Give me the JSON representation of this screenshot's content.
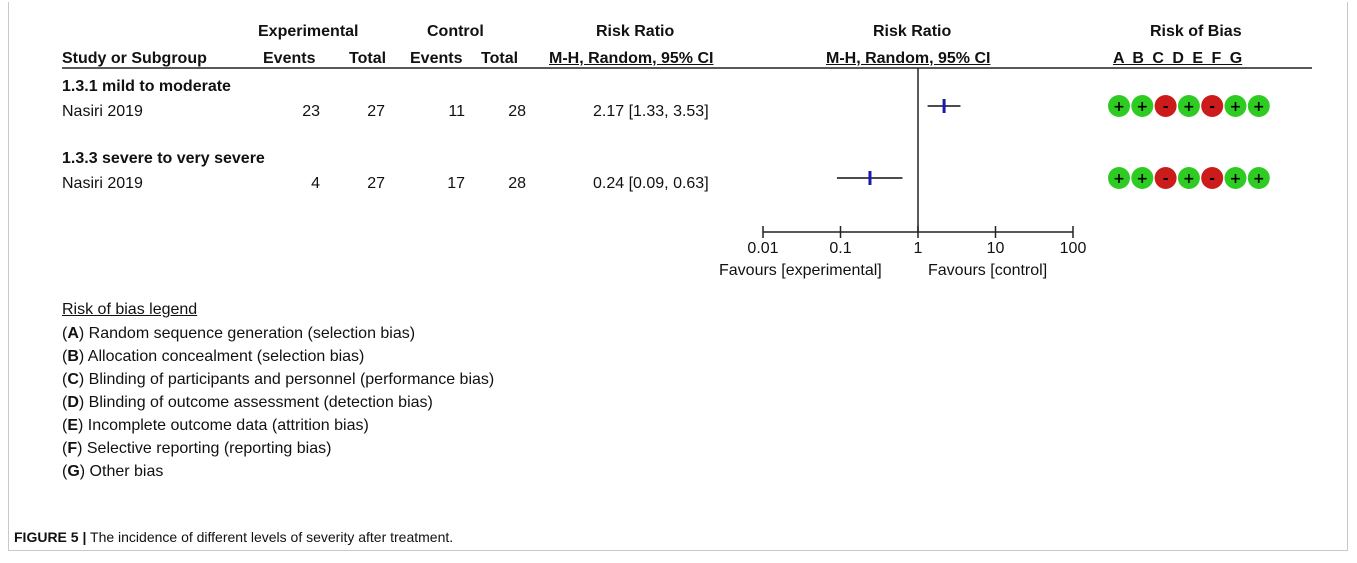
{
  "header": {
    "experimental": "Experimental",
    "control": "Control",
    "risk_ratio_left": "Risk Ratio",
    "risk_ratio_plot": "Risk Ratio",
    "risk_of_bias": "Risk of Bias",
    "study_or_subgroup": "Study or Subgroup",
    "events1": "Events",
    "total1": "Total",
    "events2": "Events",
    "total2": "Total",
    "method_left": "M-H, Random, 95% CI",
    "method_plot": "M-H, Random, 95% CI",
    "bias_letters": "A B C D E F G"
  },
  "chart_data": {
    "type": "forest",
    "x_scale": "log",
    "x_ticks": [
      "0.01",
      "0.1",
      "1",
      "10",
      "100"
    ],
    "x_tick_values": [
      0.01,
      0.1,
      1,
      10,
      100
    ],
    "xlim": [
      0.01,
      100
    ],
    "x_label_left": "Favours [experimental]",
    "x_label_right": "Favours [control]",
    "subgroups": [
      {
        "title": "1.3.1 mild to moderate",
        "study": "Nasiri 2019",
        "exp_events": "23",
        "exp_total": "27",
        "ctrl_events": "11",
        "ctrl_total": "28",
        "rr_text": "2.17 [1.33, 3.53]",
        "rr": 2.17,
        "ci_low": 1.33,
        "ci_high": 3.53,
        "bias": [
          "+",
          "+",
          "-",
          "+",
          "-",
          "+",
          "+"
        ]
      },
      {
        "title": "1.3.3 severe to very severe",
        "study": "Nasiri 2019",
        "exp_events": "4",
        "exp_total": "27",
        "ctrl_events": "17",
        "ctrl_total": "28",
        "rr_text": "0.24 [0.09, 0.63]",
        "rr": 0.24,
        "ci_low": 0.09,
        "ci_high": 0.63,
        "bias": [
          "+",
          "+",
          "-",
          "+",
          "-",
          "+",
          "+"
        ]
      }
    ],
    "colors": {
      "low_risk": "#2ecc22",
      "high_risk": "#cc1b1b",
      "estimate": "#1a1aaa"
    }
  },
  "legend": {
    "title": "Risk of bias legend",
    "items": [
      {
        "letter": "A",
        "text": " Random sequence generation (selection bias)"
      },
      {
        "letter": "B",
        "text": " Allocation concealment (selection bias)"
      },
      {
        "letter": "C",
        "text": " Blinding of participants and personnel (performance bias)"
      },
      {
        "letter": "D",
        "text": " Blinding of outcome assessment (detection bias)"
      },
      {
        "letter": "E",
        "text": " Incomplete outcome data (attrition bias)"
      },
      {
        "letter": "F",
        "text": " Selective reporting (reporting bias)"
      },
      {
        "letter": "G",
        "text": " Other bias"
      }
    ]
  },
  "caption": {
    "label": "FIGURE 5 |",
    "text": " The incidence of different levels of severity after treatment."
  }
}
